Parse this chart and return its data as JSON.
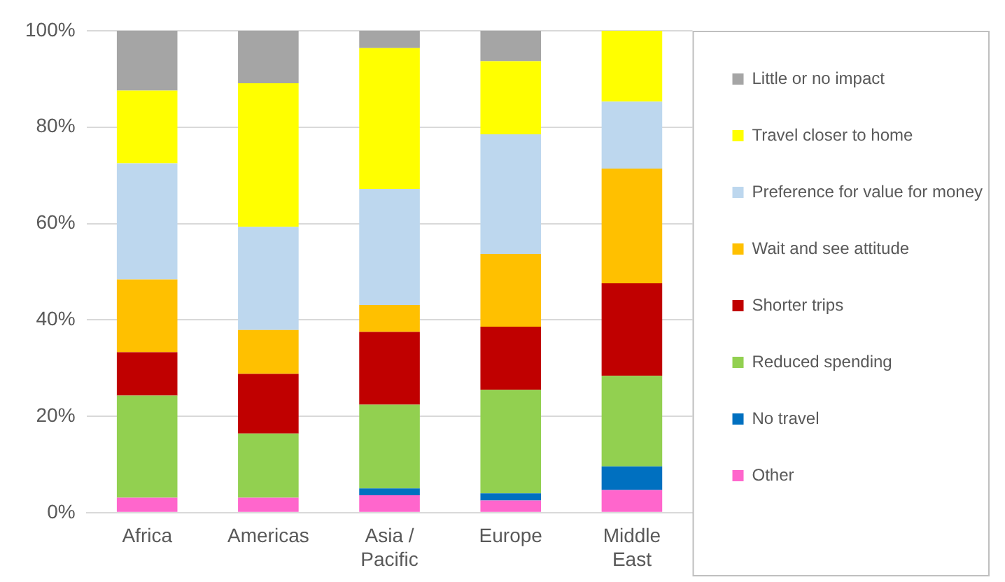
{
  "chart_data": {
    "type": "bar",
    "stacked": true,
    "categories": [
      "Africa",
      "Americas",
      "Asia / Pacific",
      "Europe",
      "Middle East"
    ],
    "series": [
      {
        "name": "Other",
        "color": "#ff66cc",
        "values": [
          3.1,
          3.1,
          3.6,
          2.5,
          4.7
        ]
      },
      {
        "name": "No travel",
        "color": "#0070c0",
        "values": [
          0,
          0,
          1.4,
          1.5,
          4.9
        ]
      },
      {
        "name": "Reduced spending",
        "color": "#92d050",
        "values": [
          21.2,
          13.3,
          17.4,
          21.5,
          18.8
        ]
      },
      {
        "name": "Shorter trips",
        "color": "#c00000",
        "values": [
          9,
          12.4,
          15.1,
          13.1,
          19.2
        ]
      },
      {
        "name": "Wait and see attitude",
        "color": "#ffc000",
        "values": [
          15.1,
          9.1,
          5.6,
          15.1,
          23.8
        ]
      },
      {
        "name": "Preference for value for money",
        "color": "#bdd7ee",
        "values": [
          24.1,
          21.4,
          24.1,
          24.8,
          13.9
        ]
      },
      {
        "name": "Travel closer to home",
        "color": "#ffff00",
        "values": [
          15.1,
          29.8,
          29.2,
          15.2,
          14.7
        ]
      },
      {
        "name": "Little or no impact",
        "color": "#a5a5a5",
        "values": [
          12.4,
          10.9,
          3.6,
          6.3,
          0
        ]
      }
    ],
    "ylim": [
      0,
      100
    ],
    "yticks": [
      {
        "value": 0,
        "label": "0%"
      },
      {
        "value": 20,
        "label": "20%"
      },
      {
        "value": 40,
        "label": "40%"
      },
      {
        "value": 60,
        "label": "60%"
      },
      {
        "value": 80,
        "label": "80%"
      },
      {
        "value": 100,
        "label": "100%"
      }
    ],
    "grid": "y",
    "legend": "right"
  }
}
